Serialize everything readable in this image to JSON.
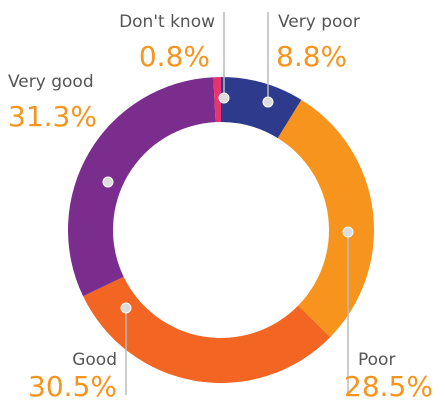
{
  "chart_data": {
    "type": "donut",
    "categories": [
      "Very poor",
      "Poor",
      "Good",
      "Very good",
      "Don't know"
    ],
    "values": [
      8.8,
      28.5,
      30.5,
      31.3,
      0.8
    ],
    "value_labels": [
      "8.8%",
      "28.5%",
      "30.5%",
      "31.3%",
      "0.8%"
    ],
    "colors": [
      "#2e3a8c",
      "#f7941d",
      "#f26522",
      "#7b2d8e",
      "#e8336d"
    ]
  }
}
